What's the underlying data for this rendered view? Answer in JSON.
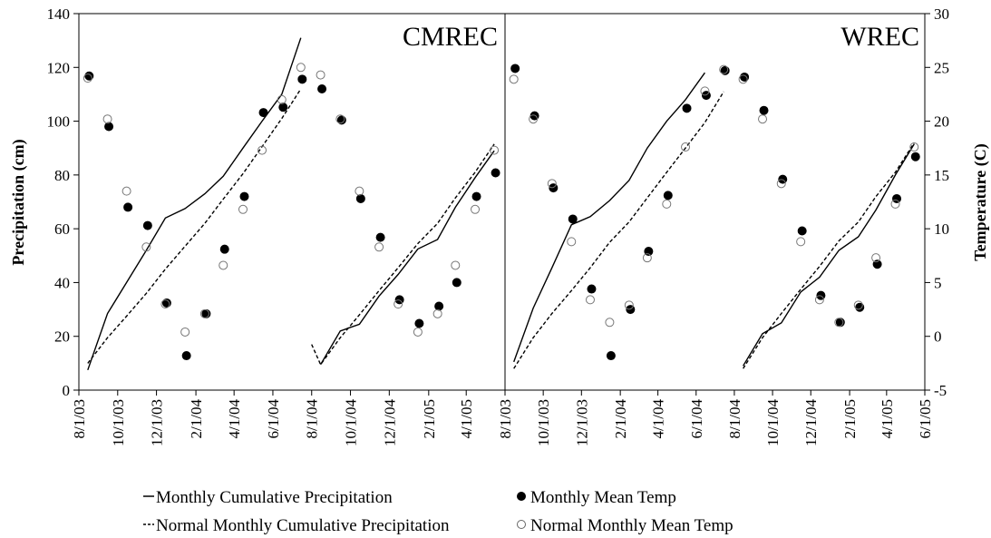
{
  "chart_data": {
    "type": "line",
    "ylabel_left": "Precipitation (cm)",
    "ylabel_right": "Temperature (C)",
    "ylim_left": [
      0,
      140
    ],
    "yticks_left": [
      "0",
      "20",
      "40",
      "60",
      "80",
      "100",
      "120",
      "140"
    ],
    "ylim_right": [
      -5,
      30
    ],
    "yticks_right": [
      "-5",
      "0",
      "5",
      "10",
      "15",
      "20",
      "25",
      "30"
    ],
    "grid": false,
    "legend_position": "bottom",
    "legend": [
      {
        "symbol": "solid-line",
        "label": "Monthly Cumulative Precipitation"
      },
      {
        "symbol": "dashed-line",
        "label": "Normal Monthly Cumulative Precipitation"
      },
      {
        "symbol": "filled-circle",
        "label": "Monthly Mean Temp"
      },
      {
        "symbol": "open-circle",
        "label": "Normal Monthly Mean Temp"
      }
    ],
    "panels": [
      {
        "title": "CMREC",
        "x_ticks": [
          "8/1/03",
          "10/1/03",
          "12/1/03",
          "2/1/04",
          "4/1/04",
          "6/1/04",
          "8/1/04",
          "10/1/04",
          "12/1/04",
          "2/1/05",
          "4/1/05"
        ],
        "series": [
          {
            "name": "Monthly Cumulative Precipitation",
            "axis": "left",
            "style": "solid",
            "segments": [
              [
                [
                  "8/15/03",
                  7.5
                ],
                [
                  "9/15/03",
                  28.5
                ],
                [
                  "10/15/03",
                  40
                ],
                [
                  "11/15/03",
                  52
                ],
                [
                  "12/15/03",
                  64
                ],
                [
                  "1/15/04",
                  67.5
                ],
                [
                  "2/15/04",
                  73
                ],
                [
                  "3/15/04",
                  79.5
                ],
                [
                  "4/15/04",
                  90
                ],
                [
                  "5/15/04",
                  100
                ],
                [
                  "6/15/04",
                  110
                ],
                [
                  "7/15/04",
                  131
                ]
              ],
              [
                [
                  "8/15/04",
                  9.5
                ],
                [
                  "9/15/04",
                  22
                ],
                [
                  "10/15/04",
                  24.5
                ],
                [
                  "11/15/04",
                  35
                ],
                [
                  "12/15/04",
                  43
                ],
                [
                  "1/15/05",
                  52.5
                ],
                [
                  "2/15/05",
                  56
                ],
                [
                  "3/15/05",
                  68
                ],
                [
                  "4/15/05",
                  79
                ],
                [
                  "5/15/05",
                  89
                ]
              ]
            ]
          },
          {
            "name": "Normal Monthly Cumulative Precipitation",
            "axis": "left",
            "style": "dashed",
            "segments": [
              [
                [
                  "8/15/03",
                  10
                ],
                [
                  "9/15/03",
                  19.5
                ],
                [
                  "10/15/03",
                  27.5
                ],
                [
                  "11/15/03",
                  36
                ],
                [
                  "12/15/03",
                  45
                ],
                [
                  "1/15/04",
                  53.5
                ],
                [
                  "2/15/04",
                  62
                ],
                [
                  "3/15/04",
                  71
                ],
                [
                  "4/15/04",
                  80.5
                ],
                [
                  "5/15/04",
                  90.5
                ],
                [
                  "6/15/04",
                  101
                ],
                [
                  "7/15/04",
                  112
                ]
              ],
              [
                [
                  "8/1/04",
                  17
                ],
                [
                  "8/15/04",
                  9.5
                ],
                [
                  "9/15/04",
                  19.5
                ],
                [
                  "10/15/04",
                  28
                ],
                [
                  "11/15/04",
                  37
                ],
                [
                  "12/15/04",
                  45.5
                ],
                [
                  "1/15/05",
                  54.5
                ],
                [
                  "2/15/05",
                  62
                ],
                [
                  "3/15/05",
                  71.5
                ],
                [
                  "4/15/05",
                  81
                ],
                [
                  "5/15/05",
                  91.5
                ]
              ]
            ]
          },
          {
            "name": "Monthly Mean Temp",
            "axis": "right",
            "style": "filled-marker",
            "points": [
              [
                "8/15/03",
                24.2
              ],
              [
                "9/15/03",
                19.5
              ],
              [
                "10/15/03",
                12
              ],
              [
                "11/15/03",
                10.3
              ],
              [
                "12/15/03",
                3.1
              ],
              [
                "1/15/04",
                -1.8
              ],
              [
                "2/15/04",
                2.1
              ],
              [
                "3/15/04",
                8.1
              ],
              [
                "4/15/04",
                13
              ],
              [
                "5/15/04",
                20.8
              ],
              [
                "6/15/04",
                21.3
              ],
              [
                "7/15/04",
                23.9
              ],
              [
                "8/15/04",
                23
              ],
              [
                "9/15/04",
                20.1
              ],
              [
                "10/15/04",
                12.8
              ],
              [
                "11/15/04",
                9.2
              ],
              [
                "12/15/04",
                3.4
              ],
              [
                "1/15/05",
                1.2
              ],
              [
                "2/15/05",
                2.8
              ],
              [
                "3/15/05",
                5
              ],
              [
                "4/15/05",
                13
              ],
              [
                "5/15/05",
                15.2
              ]
            ]
          },
          {
            "name": "Normal Monthly Mean Temp",
            "axis": "right",
            "style": "open-marker",
            "points": [
              [
                "8/15/03",
                24
              ],
              [
                "9/15/03",
                20.2
              ],
              [
                "10/15/03",
                13.5
              ],
              [
                "11/15/03",
                8.3
              ],
              [
                "12/15/03",
                3
              ],
              [
                "1/15/04",
                0.4
              ],
              [
                "2/15/04",
                2.1
              ],
              [
                "3/15/04",
                6.6
              ],
              [
                "4/15/04",
                11.8
              ],
              [
                "5/15/04",
                17.3
              ],
              [
                "6/15/04",
                22
              ],
              [
                "7/15/04",
                25
              ],
              [
                "8/15/04",
                24.3
              ],
              [
                "9/15/04",
                20.2
              ],
              [
                "10/15/04",
                13.5
              ],
              [
                "11/15/04",
                8.3
              ],
              [
                "12/15/04",
                3
              ],
              [
                "1/15/05",
                0.4
              ],
              [
                "2/15/05",
                2.1
              ],
              [
                "3/15/05",
                6.6
              ],
              [
                "4/15/05",
                11.8
              ],
              [
                "5/15/05",
                17.3
              ]
            ]
          }
        ]
      },
      {
        "title": "WREC",
        "x_ticks": [
          "8/1/03",
          "10/1/03",
          "12/1/03",
          "2/1/04",
          "4/1/04",
          "6/1/04",
          "8/1/04",
          "10/1/04",
          "12/1/04",
          "2/1/05",
          "4/1/05",
          "6/1/05"
        ],
        "series": [
          {
            "name": "Monthly Cumulative Precipitation",
            "axis": "left",
            "style": "solid",
            "segments": [
              [
                [
                  "8/15/03",
                  10.5
                ],
                [
                  "9/15/03",
                  30.5
                ],
                [
                  "10/15/03",
                  45.5
                ],
                [
                  "11/15/03",
                  61.5
                ],
                [
                  "12/15/03",
                  64.5
                ],
                [
                  "1/15/04",
                  70.5
                ],
                [
                  "2/15/04",
                  78
                ],
                [
                  "3/15/04",
                  90
                ],
                [
                  "4/15/04",
                  100
                ],
                [
                  "5/15/04",
                  108
                ],
                [
                  "6/15/04",
                  118
                ]
              ],
              [
                [
                  "8/15/04",
                  9
                ],
                [
                  "9/15/04",
                  21
                ],
                [
                  "10/15/04",
                  25
                ],
                [
                  "11/15/04",
                  36.5
                ],
                [
                  "12/15/04",
                  42
                ],
                [
                  "1/15/05",
                  52
                ],
                [
                  "2/15/05",
                  57
                ],
                [
                  "3/15/05",
                  67
                ],
                [
                  "4/15/05",
                  80
                ],
                [
                  "5/15/05",
                  91.5
                ]
              ]
            ]
          },
          {
            "name": "Normal Monthly Cumulative Precipitation",
            "axis": "left",
            "style": "dashed",
            "segments": [
              [
                [
                  "8/15/03",
                  8
                ],
                [
                  "9/15/03",
                  19.5
                ],
                [
                  "10/15/03",
                  28.5
                ],
                [
                  "11/15/03",
                  37
                ],
                [
                  "12/15/03",
                  45.5
                ],
                [
                  "1/15/04",
                  55
                ],
                [
                  "2/15/04",
                  62.5
                ],
                [
                  "3/15/04",
                  71.5
                ],
                [
                  "4/15/04",
                  81
                ],
                [
                  "5/15/04",
                  90
                ],
                [
                  "6/15/04",
                  99.5
                ],
                [
                  "7/15/04",
                  111
                ]
              ],
              [
                [
                  "8/15/04",
                  8
                ],
                [
                  "9/15/04",
                  19.5
                ],
                [
                  "10/15/04",
                  28.5
                ],
                [
                  "11/15/04",
                  37.5
                ],
                [
                  "12/15/04",
                  46
                ],
                [
                  "1/15/05",
                  55.5
                ],
                [
                  "2/15/05",
                  62.5
                ],
                [
                  "3/15/05",
                  72
                ],
                [
                  "4/15/05",
                  81
                ],
                [
                  "5/15/05",
                  92
                ]
              ]
            ]
          },
          {
            "name": "Monthly Mean Temp",
            "axis": "right",
            "style": "filled-marker",
            "points": [
              [
                "8/15/03",
                24.9
              ],
              [
                "9/15/03",
                20.5
              ],
              [
                "10/15/03",
                13.8
              ],
              [
                "11/15/03",
                10.9
              ],
              [
                "12/15/03",
                4.4
              ],
              [
                "1/15/04",
                -1.8
              ],
              [
                "2/15/04",
                2.5
              ],
              [
                "3/15/04",
                7.9
              ],
              [
                "4/15/04",
                13.1
              ],
              [
                "5/15/04",
                21.2
              ],
              [
                "6/15/04",
                22.4
              ],
              [
                "7/15/04",
                24.7
              ],
              [
                "8/15/04",
                24.1
              ],
              [
                "9/15/04",
                21
              ],
              [
                "10/15/04",
                14.6
              ],
              [
                "11/15/04",
                9.8
              ],
              [
                "12/15/04",
                3.8
              ],
              [
                "1/15/05",
                1.3
              ],
              [
                "2/15/05",
                2.7
              ],
              [
                "3/15/05",
                6.7
              ],
              [
                "4/15/05",
                12.8
              ],
              [
                "5/15/05",
                16.7
              ]
            ]
          },
          {
            "name": "Normal Monthly Mean Temp",
            "axis": "right",
            "style": "open-marker",
            "points": [
              [
                "8/15/03",
                23.9
              ],
              [
                "9/15/03",
                20.2
              ],
              [
                "10/15/03",
                14.2
              ],
              [
                "11/15/03",
                8.8
              ],
              [
                "12/15/03",
                3.4
              ],
              [
                "1/15/04",
                1.3
              ],
              [
                "2/15/04",
                2.9
              ],
              [
                "3/15/04",
                7.3
              ],
              [
                "4/15/04",
                12.3
              ],
              [
                "5/15/04",
                17.6
              ],
              [
                "6/15/04",
                22.8
              ],
              [
                "7/15/04",
                24.8
              ],
              [
                "8/15/04",
                23.9
              ],
              [
                "9/15/04",
                20.2
              ],
              [
                "10/15/04",
                14.2
              ],
              [
                "11/15/04",
                8.8
              ],
              [
                "12/15/04",
                3.4
              ],
              [
                "1/15/05",
                1.3
              ],
              [
                "2/15/05",
                2.9
              ],
              [
                "3/15/05",
                7.3
              ],
              [
                "4/15/05",
                12.3
              ],
              [
                "5/15/05",
                17.6
              ]
            ]
          }
        ]
      }
    ]
  }
}
